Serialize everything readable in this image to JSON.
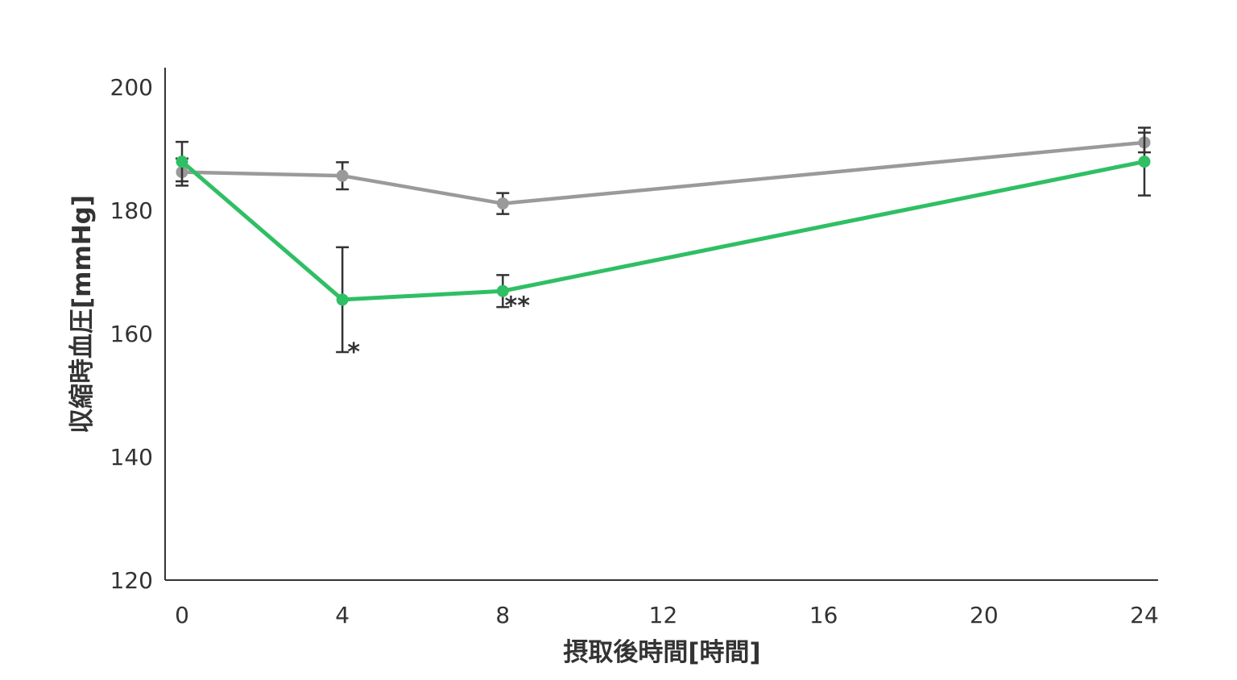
{
  "chart_data": {
    "type": "line",
    "xlabel": "摂取後時間[時間]",
    "ylabel": "収縮時血圧[mmHg]",
    "xlim": [
      0,
      24
    ],
    "ylim": [
      120,
      200
    ],
    "x_ticks": [
      0,
      4,
      8,
      12,
      16,
      20,
      24
    ],
    "y_ticks": [
      120,
      140,
      160,
      180,
      200
    ],
    "grid": false,
    "legend": null,
    "series": [
      {
        "color": "#9a9a9a",
        "points": [
          {
            "x": 0,
            "y": 186.2,
            "err": 2.2
          },
          {
            "x": 4,
            "y": 185.6,
            "err": 2.2
          },
          {
            "x": 8,
            "y": 181.1,
            "err": 1.7
          },
          {
            "x": 24,
            "y": 191.0,
            "err": 1.6
          }
        ]
      },
      {
        "color": "#2fbf64",
        "points": [
          {
            "x": 0,
            "y": 187.9,
            "err": 3.2
          },
          {
            "x": 4,
            "y": 165.5,
            "err": 8.5
          },
          {
            "x": 8,
            "y": 166.9,
            "err": 2.6
          },
          {
            "x": 24,
            "y": 187.9,
            "err": 5.5
          }
        ]
      }
    ],
    "annotations": [
      {
        "text": "*",
        "x": 4,
        "y": 157
      },
      {
        "text": "**",
        "x": 8,
        "y": 164.5
      }
    ]
  }
}
